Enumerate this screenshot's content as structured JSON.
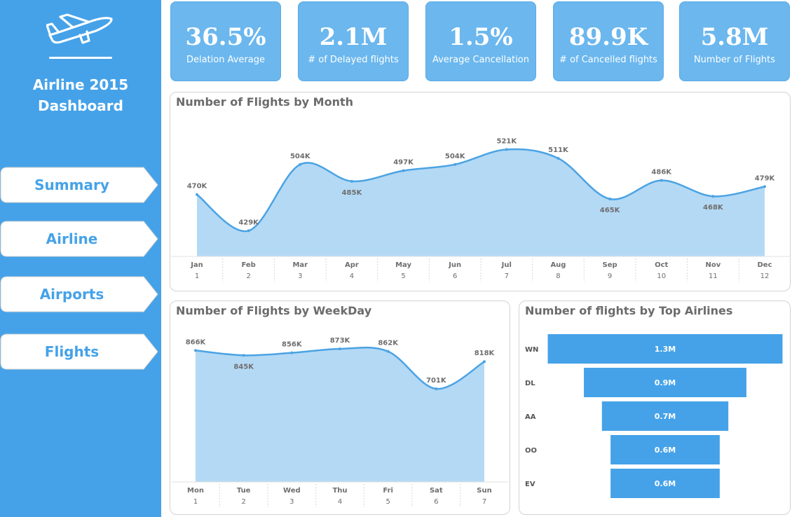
{
  "app": {
    "title_line1": "Airline 2015",
    "title_line2": "Dashboard"
  },
  "nav": [
    {
      "label": "Summary"
    },
    {
      "label": "Airline"
    },
    {
      "label": "Airports"
    },
    {
      "label": "Flights"
    }
  ],
  "kpis": [
    {
      "value": "36.5%",
      "label": "Delation Average"
    },
    {
      "value": "2.1M",
      "label": "# of Delayed flights"
    },
    {
      "value": "1.5%",
      "label": "Average Cancellation"
    },
    {
      "value": "89.9K",
      "label": "# of  Cancelled flights"
    },
    {
      "value": "5.8M",
      "label": "Number of Flights"
    }
  ],
  "colors": {
    "sidebar": "#45a2e8",
    "kpi": "#6bb7ee",
    "line": "#4ba3e3",
    "area": "#b4d9f5",
    "bar": "#45a2e8"
  },
  "icons": {
    "logo": "airplane-takeoff-icon"
  },
  "chart_data": [
    {
      "type": "area",
      "title": "Number of Flights by Month",
      "categories": [
        "Jan",
        "Feb",
        "Mar",
        "Apr",
        "May",
        "Jun",
        "Jul",
        "Aug",
        "Sep",
        "Oct",
        "Nov",
        "Dec"
      ],
      "category_numbers": [
        "1",
        "2",
        "3",
        "4",
        "5",
        "6",
        "7",
        "8",
        "9",
        "10",
        "11",
        "12"
      ],
      "values": [
        470,
        429,
        504,
        485,
        497,
        504,
        521,
        511,
        465,
        486,
        468,
        479
      ],
      "value_labels": [
        "470K",
        "429K",
        "504K",
        "485K",
        "497K",
        "504K",
        "521K",
        "511K",
        "465K",
        "486K",
        "468K",
        "479K"
      ],
      "label_positions": [
        "above",
        "above",
        "above",
        "below",
        "above",
        "above",
        "above",
        "above",
        "below",
        "above",
        "below",
        "above"
      ],
      "ylim": [
        400,
        530
      ]
    },
    {
      "type": "area",
      "title": "Number of Flights by WeekDay",
      "categories": [
        "Mon",
        "Tue",
        "Wed",
        "Thu",
        "Fri",
        "Sat",
        "Sun"
      ],
      "category_numbers": [
        "1",
        "2",
        "3",
        "4",
        "5",
        "6",
        "7"
      ],
      "values": [
        866,
        845,
        856,
        873,
        862,
        701,
        818
      ],
      "value_labels": [
        "866K",
        "845K",
        "856K",
        "873K",
        "862K",
        "701K",
        "818K"
      ],
      "label_positions": [
        "above",
        "below",
        "above",
        "above",
        "above",
        "above",
        "above"
      ],
      "ylim": [
        300,
        885
      ]
    },
    {
      "type": "bar",
      "orientation": "horizontal-funnel",
      "title": "Number of flights by Top Airlines",
      "categories": [
        "WN",
        "DL",
        "AA",
        "OO",
        "EV"
      ],
      "values": [
        1.3,
        0.9,
        0.7,
        0.6,
        0.6
      ],
      "value_labels": [
        "1.3M",
        "0.9M",
        "0.7M",
        "0.6M",
        "0.6M"
      ]
    }
  ]
}
